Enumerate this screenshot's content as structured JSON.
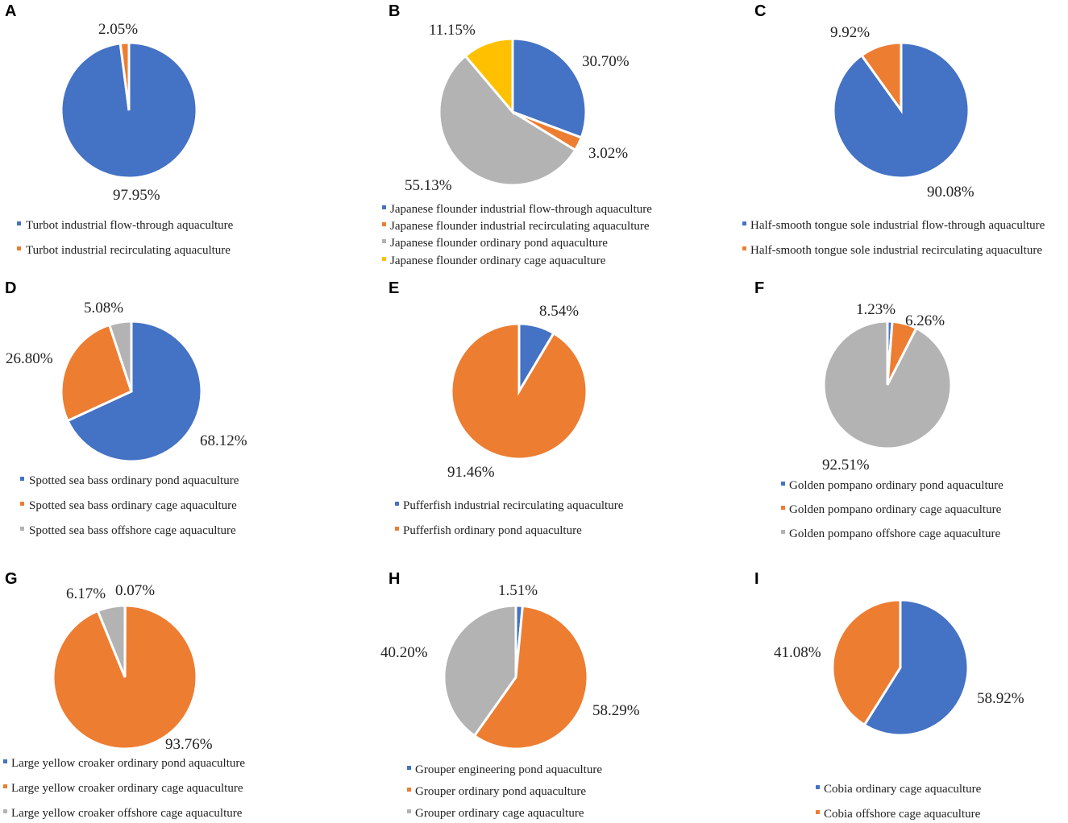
{
  "colors": {
    "blue": "#4472C4",
    "orange": "#ED7D31",
    "gray": "#B3B3B3",
    "yellow": "#FFC000"
  },
  "chart_data": [
    {
      "type": "pie",
      "panel": "A",
      "series": [
        {
          "name": "Turbot industrial flow-through aquaculture",
          "value": 97.95,
          "label": "97.95%",
          "color": "#4472C4"
        },
        {
          "name": "Turbot industrial recirculating aquaculture",
          "value": 2.05,
          "label": "2.05%",
          "color": "#ED7D31"
        }
      ]
    },
    {
      "type": "pie",
      "panel": "B",
      "series": [
        {
          "name": "Japanese flounder industrial flow-through aquaculture",
          "value": 30.7,
          "label": "30.70%",
          "color": "#4472C4"
        },
        {
          "name": "Japanese flounder industrial recirculating aquaculture",
          "value": 3.02,
          "label": "3.02%",
          "color": "#ED7D31"
        },
        {
          "name": "Japanese flounder ordinary pond aquaculture",
          "value": 55.13,
          "label": "55.13%",
          "color": "#B3B3B3"
        },
        {
          "name": "Japanese flounder ordinary cage aquaculture",
          "value": 11.15,
          "label": "11.15%",
          "color": "#FFC000"
        }
      ]
    },
    {
      "type": "pie",
      "panel": "C",
      "series": [
        {
          "name": "Half-smooth tongue sole industrial flow-through aquaculture",
          "value": 90.08,
          "label": "90.08%",
          "color": "#4472C4"
        },
        {
          "name": "Half-smooth tongue sole industrial recirculating aquaculture",
          "value": 9.92,
          "label": "9.92%",
          "color": "#ED7D31"
        }
      ]
    },
    {
      "type": "pie",
      "panel": "D",
      "series": [
        {
          "name": "Spotted sea bass ordinary pond aquaculture",
          "value": 68.12,
          "label": "68.12%",
          "color": "#4472C4"
        },
        {
          "name": "Spotted sea bass ordinary cage aquaculture",
          "value": 26.8,
          "label": "26.80%",
          "color": "#ED7D31"
        },
        {
          "name": "Spotted sea bass offshore cage aquaculture",
          "value": 5.08,
          "label": "5.08%",
          "color": "#B3B3B3"
        }
      ]
    },
    {
      "type": "pie",
      "panel": "E",
      "series": [
        {
          "name": "Pufferfish industrial recirculating aquaculture",
          "value": 8.54,
          "label": "8.54%",
          "color": "#4472C4"
        },
        {
          "name": "Pufferfish ordinary pond aquaculture",
          "value": 91.46,
          "label": "91.46%",
          "color": "#ED7D31"
        }
      ]
    },
    {
      "type": "pie",
      "panel": "F",
      "series": [
        {
          "name": "Golden pompano ordinary pond aquaculture",
          "value": 1.23,
          "label": "1.23%",
          "color": "#4472C4"
        },
        {
          "name": "Golden pompano ordinary cage aquaculture",
          "value": 6.26,
          "label": "6.26%",
          "color": "#ED7D31"
        },
        {
          "name": "Golden pompano offshore cage aquaculture",
          "value": 92.51,
          "label": "92.51%",
          "color": "#B3B3B3"
        }
      ]
    },
    {
      "type": "pie",
      "panel": "G",
      "series": [
        {
          "name": "Large yellow croaker ordinary pond aquaculture",
          "value": 0.07,
          "label": "0.07%",
          "color": "#4472C4"
        },
        {
          "name": "Large yellow croaker ordinary cage aquaculture",
          "value": 93.76,
          "label": "93.76%",
          "color": "#ED7D31"
        },
        {
          "name": "Large yellow croaker offshore cage aquaculture",
          "value": 6.17,
          "label": "6.17%",
          "color": "#B3B3B3"
        }
      ]
    },
    {
      "type": "pie",
      "panel": "H",
      "series": [
        {
          "name": "Grouper engineering pond aquaculture",
          "value": 1.51,
          "label": "1.51%",
          "color": "#4472C4"
        },
        {
          "name": "Grouper ordinary pond aquaculture",
          "value": 58.29,
          "label": "58.29%",
          "color": "#ED7D31"
        },
        {
          "name": "Grouper ordinary cage aquaculture",
          "value": 40.2,
          "label": "40.20%",
          "color": "#B3B3B3"
        }
      ]
    },
    {
      "type": "pie",
      "panel": "I",
      "series": [
        {
          "name": "Cobia ordinary cage aquaculture",
          "value": 58.92,
          "label": "58.92%",
          "color": "#4472C4"
        },
        {
          "name": "Cobia offshore cage aquaculture",
          "value": 41.08,
          "label": "41.08%",
          "color": "#ED7D31"
        }
      ]
    }
  ]
}
